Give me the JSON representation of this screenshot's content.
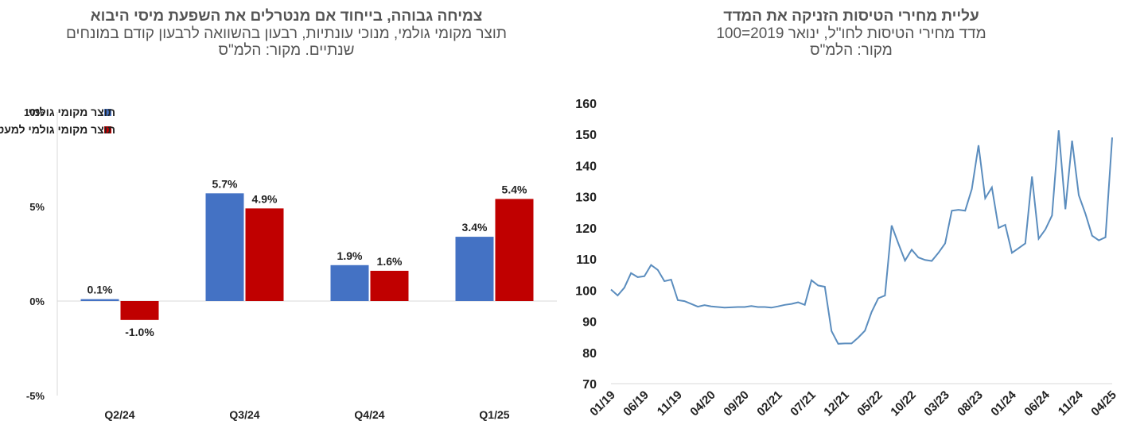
{
  "left": {
    "title": "צמיחה גבוהה, בייחוד אם מנטרלים את השפעת מיסי היבוא",
    "subtitle_line1": "תוצר מקומי גולמי, מנוכי עונתיות, רבעון בהשוואה לרבעון קודם במונחים",
    "subtitle_line2": "שנתיים. מקור: הלמ\"ס"
  },
  "right": {
    "title": "עליית מחירי הטיסות הזניקה את המדד",
    "subtitle_line1": "מדד מחירי הטיסות לחו\"ל, ינואר 2019=100",
    "subtitle_line2": "מקור: הלמ\"ס"
  },
  "chart_data": [
    {
      "type": "bar",
      "categories": [
        "Q2/24",
        "Q3/24",
        "Q4/24",
        "Q1/25"
      ],
      "series": [
        {
          "name": "תוצר מקומי גולמי",
          "color": "#4472C4",
          "values": [
            0.1,
            5.7,
            1.9,
            3.4
          ],
          "labels": [
            "0.1%",
            "5.7%",
            "1.9%",
            "3.4%"
          ]
        },
        {
          "name": "תוצר מקומי גולמי למעט מסים נטו על יבוא",
          "color": "#C00000",
          "values": [
            -1.0,
            4.9,
            1.6,
            5.4
          ],
          "labels": [
            "-1.0%",
            "4.9%",
            "1.6%",
            "5.4%"
          ]
        }
      ],
      "ylim": [
        -5,
        10
      ],
      "yticks": [
        -5,
        0,
        5,
        10
      ],
      "ytick_labels": [
        "-5%",
        "0%",
        "5%",
        "10%"
      ],
      "legend_position": "top-left",
      "grid": false
    },
    {
      "type": "line",
      "series": [
        {
          "color": "#5B8DBE",
          "values": [
            100.2,
            98.3,
            100.8,
            105.5,
            104.2,
            104.5,
            108.1,
            106.5,
            102.9,
            103.4,
            96.8,
            96.5,
            95.6,
            94.7,
            95.2,
            94.8,
            94.6,
            94.4,
            94.5,
            94.6,
            94.6,
            94.9,
            94.6,
            94.6,
            94.4,
            94.8,
            95.3,
            95.6,
            96.1,
            95.3,
            103.2,
            101.5,
            101.1,
            86.9,
            82.8,
            82.9,
            82.9,
            84.8,
            87.0,
            93.0,
            97.4,
            98.3,
            120.8,
            115.0,
            109.5,
            113.0,
            110.5,
            109.7,
            109.4,
            112.0,
            115.0,
            125.5,
            125.8,
            125.5,
            132.5,
            146.5,
            129.5,
            133.0,
            120.0,
            121.0,
            112.0,
            113.5,
            115.0,
            136.5,
            116.5,
            119.5,
            124.0,
            151.3,
            126.0,
            148.0,
            130.5,
            124.5,
            117.5,
            116.0,
            117.0,
            149.0
          ]
        }
      ],
      "x_tick_labels": [
        "01/19",
        "06/19",
        "11/19",
        "04/20",
        "09/20",
        "02/21",
        "07/21",
        "12/21",
        "05/22",
        "10/22",
        "03/23",
        "08/23",
        "01/24",
        "06/24",
        "11/24",
        "04/25"
      ],
      "ylim": [
        70,
        160
      ],
      "yticks": [
        70,
        80,
        90,
        100,
        110,
        120,
        130,
        140,
        150,
        160
      ],
      "grid": false
    }
  ]
}
